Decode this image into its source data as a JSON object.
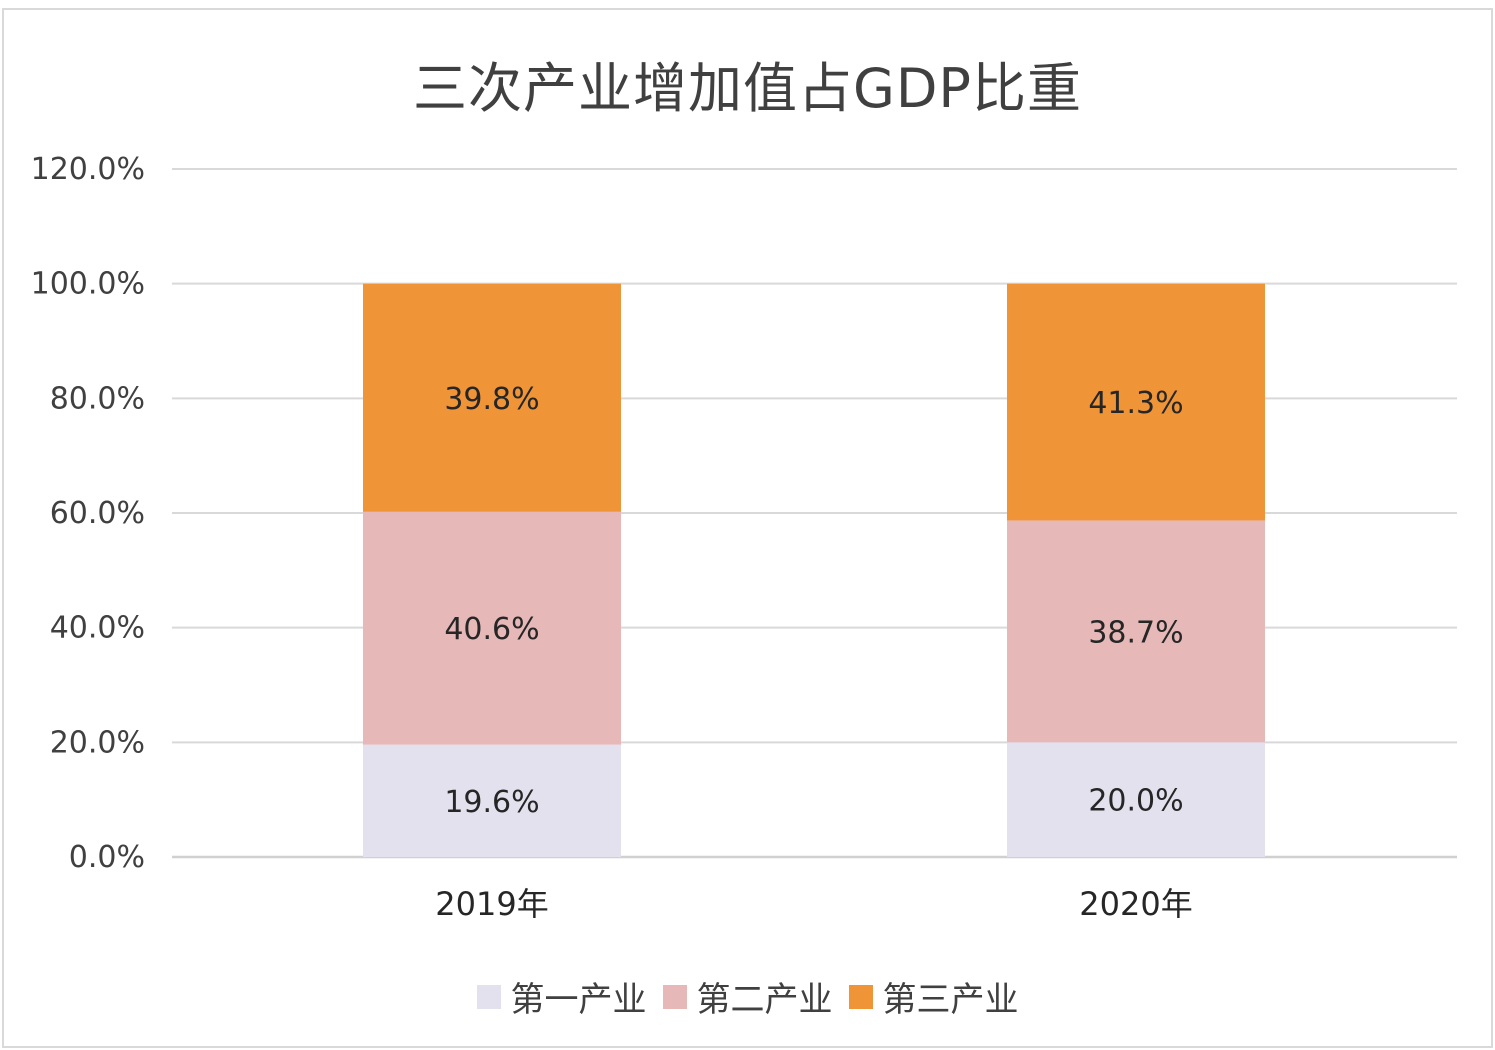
{
  "chart_data": {
    "type": "bar",
    "stacked": true,
    "title": "三次产业增加值占GDP比重",
    "categories": [
      "2019年",
      "2020年"
    ],
    "series": [
      {
        "name": "第一产业",
        "values": [
          19.6,
          20.0
        ],
        "labels": [
          "19.6%",
          "20.0%"
        ],
        "color": "#e4e1ee"
      },
      {
        "name": "第二产业",
        "values": [
          40.6,
          38.7
        ],
        "labels": [
          "40.6%",
          "38.7%"
        ],
        "color": "#e6b8b8"
      },
      {
        "name": "第三产业",
        "values": [
          39.8,
          41.3
        ],
        "labels": [
          "39.8%",
          "41.3%"
        ],
        "color": "#f09537"
      }
    ],
    "ylim": [
      0,
      120
    ],
    "y_ticks": [
      "0.0%",
      "20.0%",
      "40.0%",
      "60.0%",
      "80.0%",
      "100.0%",
      "120.0%"
    ],
    "grid": true,
    "legend_position": "bottom"
  }
}
